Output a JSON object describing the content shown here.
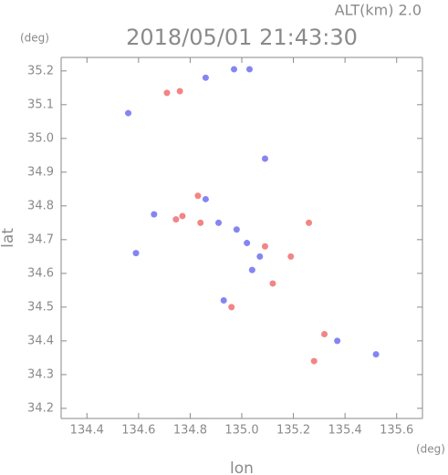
{
  "chart_data": {
    "type": "scatter",
    "title": "2018/05/01 21:43:30",
    "subtitle": "ALT(km) 2.0",
    "x_label": "lon",
    "y_label": "lat",
    "x_unit": "(deg)",
    "y_unit": "(deg)",
    "xlim": [
      134.3,
      135.7
    ],
    "ylim": [
      34.17,
      35.24
    ],
    "xticks": [
      134.4,
      134.6,
      134.8,
      {
        "value": 135.0,
        "label": "135.0"
      },
      135.2,
      135.4,
      135.6
    ],
    "yticks": [
      34.2,
      34.3,
      34.4,
      34.5,
      34.6,
      34.7,
      34.8,
      34.9,
      {
        "value": 35.0,
        "label": "35.0"
      },
      35.1,
      35.2
    ],
    "series": [
      {
        "color": "#f07070",
        "x": [
          134.71,
          134.76,
          134.745,
          134.77,
          134.83,
          134.84,
          134.96,
          135.09,
          135.12,
          135.32,
          135.28,
          135.26,
          135.19
        ],
        "y": [
          35.135,
          35.14,
          34.76,
          34.77,
          34.83,
          34.75,
          34.5,
          34.68,
          34.57,
          34.42,
          34.34,
          34.75,
          34.65
        ]
      },
      {
        "color": "#7070f0",
        "x": [
          134.97,
          135.03,
          135.09,
          134.66,
          134.86,
          134.91,
          134.98,
          135.02,
          135.07,
          135.04,
          134.93,
          134.59,
          135.37,
          135.52,
          134.56,
          134.86
        ],
        "y": [
          35.205,
          35.205,
          34.94,
          34.775,
          34.82,
          34.75,
          34.73,
          34.69,
          34.65,
          34.61,
          34.52,
          34.66,
          34.4,
          34.36,
          35.075,
          35.18
        ]
      }
    ]
  }
}
